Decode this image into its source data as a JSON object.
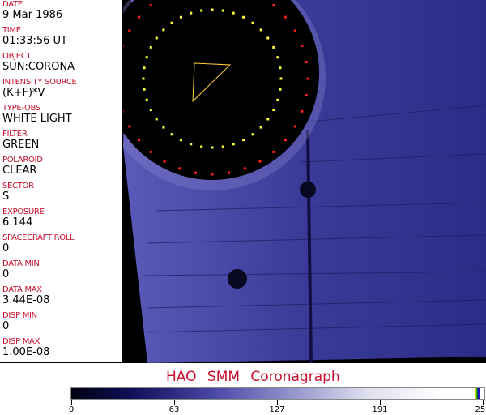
{
  "fields": [
    {
      "label": "DATE",
      "value": "9 Mar 1986"
    },
    {
      "label": "TIME",
      "value": "01:33:56 UT"
    },
    {
      "label": "OBJECT",
      "value": "SUN:CORONA"
    },
    {
      "label": "INTENSITY SOURCE",
      "value": "(K+F)*V"
    },
    {
      "label": "TYPE-OBS",
      "value": "WHITE LIGHT"
    },
    {
      "label": "FILTER",
      "value": "GREEN"
    },
    {
      "label": "POLAROID",
      "value": "CLEAR"
    },
    {
      "label": "SECTOR",
      "value": "S"
    },
    {
      "label": "EXPOSURE",
      "value": "6.144"
    },
    {
      "label": "SPACECRAFT ROLL",
      "value": "0"
    },
    {
      "label": "DATA MIN",
      "value": "0"
    },
    {
      "label": "DATA MAX",
      "value": "3.44E-08"
    },
    {
      "label": "DISP MIN",
      "value": "0"
    },
    {
      "label": "DISP MAX",
      "value": "1.00E-08"
    }
  ],
  "title": "HAO  SMM Coronagraph",
  "colorbar": {
    "ticks": [
      "0",
      "63",
      "127",
      "191",
      "255"
    ]
  },
  "colors": {
    "label": "#c8102e",
    "image": "#3c3c9c"
  }
}
